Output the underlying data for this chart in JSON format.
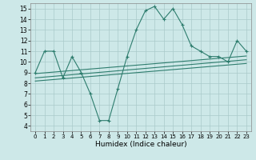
{
  "xlabel": "Humidex (Indice chaleur)",
  "xlim": [
    -0.5,
    23.5
  ],
  "ylim": [
    3.5,
    15.5
  ],
  "xticks": [
    0,
    1,
    2,
    3,
    4,
    5,
    6,
    7,
    8,
    9,
    10,
    11,
    12,
    13,
    14,
    15,
    16,
    17,
    18,
    19,
    20,
    21,
    22,
    23
  ],
  "yticks": [
    4,
    5,
    6,
    7,
    8,
    9,
    10,
    11,
    12,
    13,
    14,
    15
  ],
  "bg_color": "#cde8e8",
  "line_color": "#2e7d6e",
  "grid_color": "#aacaca",
  "series1_x": [
    0,
    1,
    2,
    3,
    4,
    5,
    6,
    7,
    8,
    9,
    10,
    11,
    12,
    13,
    14,
    15,
    16,
    17,
    18,
    19,
    20,
    21,
    22,
    23
  ],
  "series1_y": [
    9,
    11,
    11,
    8.5,
    10.5,
    9,
    7,
    4.5,
    4.5,
    7.5,
    10.5,
    13,
    14.8,
    15.2,
    14,
    15,
    13.5,
    11.5,
    11,
    10.5,
    10.5,
    10,
    12,
    11
  ],
  "series2_x": [
    0,
    23
  ],
  "series2_y": [
    8.9,
    10.55
  ],
  "series3_x": [
    0,
    23
  ],
  "series3_y": [
    8.5,
    10.2
  ],
  "series4_x": [
    0,
    23
  ],
  "series4_y": [
    8.2,
    9.85
  ]
}
